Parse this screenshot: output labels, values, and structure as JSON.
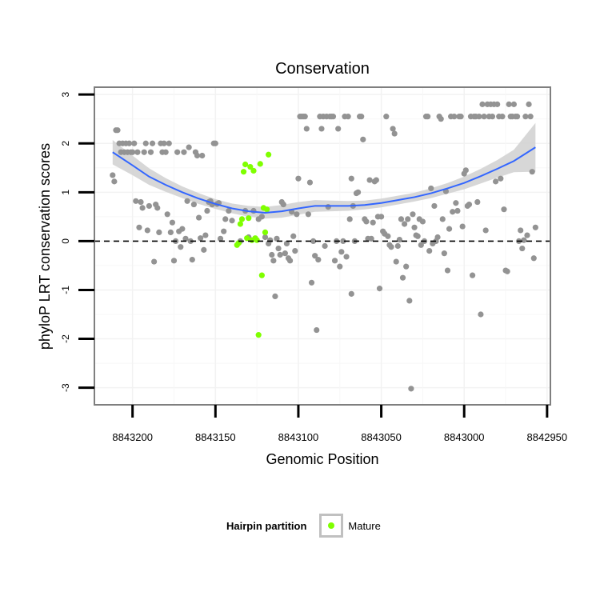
{
  "chart_data": {
    "type": "scatter",
    "title": "Conservation",
    "xlabel": "Genomic Position",
    "ylabel": "phyloP LRT conservation scores",
    "x_reversed": true,
    "xlim": [
      8843223,
      8842948
    ],
    "ylim": [
      -3.35,
      3.15
    ],
    "x_ticks": [
      8843200,
      8843150,
      8843100,
      8843050,
      8843000,
      8842950
    ],
    "y_ticks": [
      -3,
      -2,
      -1,
      0,
      1,
      2,
      3
    ],
    "reference_line": {
      "y": 0,
      "style": "dashed"
    },
    "grid": true,
    "legend": {
      "title": "Hairpin partition",
      "position": "bottom",
      "entries": [
        {
          "label": "Mature",
          "color": "#7fff00"
        }
      ]
    },
    "colors": {
      "other": "#939393",
      "mature": "#7fff00",
      "smooth": "#3366ff",
      "band": "#d3d3d3"
    },
    "series": [
      {
        "group": "other",
        "points": [
          [
            8843212,
            1.35
          ],
          [
            8843211,
            1.22
          ],
          [
            8843210,
            2.27
          ],
          [
            8843209,
            2.27
          ],
          [
            8843208,
            2.0
          ],
          [
            8843207,
            1.82
          ],
          [
            8843206,
            2.0
          ],
          [
            8843205,
            1.82
          ],
          [
            8843204,
            2.0
          ],
          [
            8843203,
            1.82
          ],
          [
            8843202,
            2.0
          ],
          [
            8843201,
            1.82
          ],
          [
            8843200,
            1.82
          ],
          [
            8843199,
            2.0
          ],
          [
            8843198,
            0.82
          ],
          [
            8843197,
            1.82
          ],
          [
            8843196,
            0.28
          ],
          [
            8843195,
            0.8
          ],
          [
            8843194,
            0.68
          ],
          [
            8843193,
            1.82
          ],
          [
            8843192,
            2.0
          ],
          [
            8843191,
            0.22
          ],
          [
            8843190,
            0.72
          ],
          [
            8843189,
            1.82
          ],
          [
            8843188,
            2.0
          ],
          [
            8843187,
            -0.42
          ],
          [
            8843186,
            0.75
          ],
          [
            8843185,
            0.68
          ],
          [
            8843184,
            0.18
          ],
          [
            8843183,
            2.0
          ],
          [
            8843182,
            1.82
          ],
          [
            8843181,
            2.0
          ],
          [
            8843180,
            1.82
          ],
          [
            8843179,
            0.55
          ],
          [
            8843178,
            2.0
          ],
          [
            8843177,
            0.18
          ],
          [
            8843176,
            0.38
          ],
          [
            8843175,
            -0.4
          ],
          [
            8843174,
            0.0
          ],
          [
            8843173,
            1.82
          ],
          [
            8843172,
            0.2
          ],
          [
            8843171,
            -0.12
          ],
          [
            8843170,
            0.25
          ],
          [
            8843169,
            1.82
          ],
          [
            8843168,
            0.05
          ],
          [
            8843167,
            0.82
          ],
          [
            8843166,
            1.92
          ],
          [
            8843165,
            0.0
          ],
          [
            8843164,
            -0.38
          ],
          [
            8843163,
            0.75
          ],
          [
            8843162,
            1.82
          ],
          [
            8843161,
            1.75
          ],
          [
            8843160,
            0.48
          ],
          [
            8843159,
            0.06
          ],
          [
            8843158,
            1.75
          ],
          [
            8843157,
            -0.18
          ],
          [
            8843156,
            0.12
          ],
          [
            8843155,
            0.62
          ],
          [
            8843154,
            0.8
          ],
          [
            8843153,
            0.82
          ],
          [
            8843152,
            0.75
          ],
          [
            8843151,
            2.0
          ],
          [
            8843150,
            2.0
          ],
          [
            8843149,
            0.76
          ],
          [
            8843148,
            0.78
          ],
          [
            8843147,
            0.05
          ],
          [
            8843145,
            0.2
          ],
          [
            8843144,
            0.45
          ],
          [
            8843142,
            0.62
          ],
          [
            8843140,
            0.42
          ],
          [
            8843135,
            0.0
          ],
          [
            8843132,
            0.62
          ],
          [
            8843130,
            0.08
          ],
          [
            8843127,
            0.62
          ],
          [
            8843124,
            0.45
          ],
          [
            8843122,
            0.5
          ],
          [
            8843120,
            0.08
          ],
          [
            8843118,
            -0.05
          ],
          [
            8843117,
            0.02
          ],
          [
            8843116,
            -0.28
          ],
          [
            8843115,
            -0.4
          ],
          [
            8843114,
            -1.13
          ],
          [
            8843113,
            0.05
          ],
          [
            8843112,
            -0.15
          ],
          [
            8843111,
            -0.28
          ],
          [
            8843110,
            0.8
          ],
          [
            8843109,
            0.75
          ],
          [
            8843108,
            -0.25
          ],
          [
            8843107,
            -0.05
          ],
          [
            8843106,
            -0.35
          ],
          [
            8843105,
            -0.4
          ],
          [
            8843104,
            0.6
          ],
          [
            8843103,
            0.1
          ],
          [
            8843102,
            -0.2
          ],
          [
            8843101,
            0.55
          ],
          [
            8843100,
            1.28
          ],
          [
            8843099,
            2.55
          ],
          [
            8843098,
            2.55
          ],
          [
            8843097,
            2.55
          ],
          [
            8843096,
            2.55
          ],
          [
            8843095,
            2.3
          ],
          [
            8843094,
            0.55
          ],
          [
            8843093,
            1.2
          ],
          [
            8843092,
            -0.85
          ],
          [
            8843091,
            0.0
          ],
          [
            8843090,
            -0.3
          ],
          [
            8843089,
            -1.82
          ],
          [
            8843088,
            -0.38
          ],
          [
            8843087,
            2.55
          ],
          [
            8843086,
            2.3
          ],
          [
            8843085,
            2.55
          ],
          [
            8843084,
            -0.1
          ],
          [
            8843083,
            2.55
          ],
          [
            8843082,
            0.7
          ],
          [
            8843081,
            2.55
          ],
          [
            8843080,
            2.55
          ],
          [
            8843079,
            2.55
          ],
          [
            8843078,
            -0.4
          ],
          [
            8843077,
            0.0
          ],
          [
            8843076,
            2.3
          ],
          [
            8843075,
            -0.52
          ],
          [
            8843074,
            -0.22
          ],
          [
            8843073,
            0.0
          ],
          [
            8843072,
            2.55
          ],
          [
            8843071,
            -0.32
          ],
          [
            8843070,
            2.55
          ],
          [
            8843069,
            0.45
          ],
          [
            8843068,
            -1.08
          ],
          [
            8843067,
            0.72
          ],
          [
            8843066,
            0.0
          ],
          [
            8843065,
            0.98
          ],
          [
            8843064,
            1.0
          ],
          [
            8843063,
            2.55
          ],
          [
            8843062,
            2.55
          ],
          [
            8843061,
            2.08
          ],
          [
            8843060,
            0.45
          ],
          [
            8843059,
            0.4
          ],
          [
            8843058,
            0.05
          ],
          [
            8843057,
            1.25
          ],
          [
            8843056,
            0.05
          ],
          [
            8843055,
            0.38
          ],
          [
            8843054,
            1.22
          ],
          [
            8843053,
            1.25
          ],
          [
            8843052,
            0.5
          ],
          [
            8843051,
            -0.97
          ],
          [
            8843050,
            0.5
          ],
          [
            8843049,
            0.2
          ],
          [
            8843048,
            0.15
          ],
          [
            8843047,
            2.55
          ],
          [
            8843046,
            0.1
          ],
          [
            8843045,
            -0.08
          ],
          [
            8843044,
            -0.12
          ],
          [
            8843043,
            2.3
          ],
          [
            8843042,
            2.2
          ],
          [
            8843041,
            -0.42
          ],
          [
            8843040,
            -0.1
          ],
          [
            8843039,
            0.03
          ],
          [
            8843038,
            0.45
          ],
          [
            8843037,
            -0.75
          ],
          [
            8843036,
            0.35
          ],
          [
            8843035,
            -0.52
          ],
          [
            8843034,
            0.45
          ],
          [
            8843033,
            -1.22
          ],
          [
            8843032,
            -3.02
          ],
          [
            8843031,
            0.55
          ],
          [
            8843030,
            0.28
          ],
          [
            8843029,
            0.12
          ],
          [
            8843028,
            0.1
          ],
          [
            8843027,
            0.45
          ],
          [
            8843026,
            -0.08
          ],
          [
            8843025,
            0.4
          ],
          [
            8843024,
            0.0
          ],
          [
            8843023,
            2.55
          ],
          [
            8843022,
            2.55
          ],
          [
            8843021,
            -0.2
          ],
          [
            8843020,
            1.08
          ],
          [
            8843019,
            -0.05
          ],
          [
            8843018,
            0.72
          ],
          [
            8843017,
            0.0
          ],
          [
            8843016,
            0.08
          ],
          [
            8843015,
            2.55
          ],
          [
            8843014,
            2.5
          ],
          [
            8843013,
            0.45
          ],
          [
            8843012,
            -0.25
          ],
          [
            8843011,
            1.02
          ],
          [
            8843010,
            -0.6
          ],
          [
            8843009,
            0.25
          ],
          [
            8843008,
            2.55
          ],
          [
            8843007,
            0.6
          ],
          [
            8843006,
            2.55
          ],
          [
            8843005,
            0.78
          ],
          [
            8843004,
            0.62
          ],
          [
            8843003,
            2.55
          ],
          [
            8843002,
            2.55
          ],
          [
            8843001,
            0.3
          ],
          [
            8843000,
            1.38
          ],
          [
            8842999,
            1.45
          ],
          [
            8842998,
            0.72
          ],
          [
            8842997,
            0.75
          ],
          [
            8842996,
            2.55
          ],
          [
            8842995,
            -0.7
          ],
          [
            8842994,
            2.55
          ],
          [
            8842993,
            2.55
          ],
          [
            8842992,
            0.8
          ],
          [
            8842991,
            2.55
          ],
          [
            8842990,
            -1.5
          ],
          [
            8842989,
            2.8
          ],
          [
            8842988,
            2.55
          ],
          [
            8842987,
            0.22
          ],
          [
            8842986,
            2.8
          ],
          [
            8842985,
            2.55
          ],
          [
            8842984,
            2.8
          ],
          [
            8842983,
            2.55
          ],
          [
            8842982,
            2.8
          ],
          [
            8842981,
            1.22
          ],
          [
            8842980,
            2.8
          ],
          [
            8842979,
            2.55
          ],
          [
            8842978,
            1.28
          ],
          [
            8842977,
            2.55
          ],
          [
            8842976,
            0.65
          ],
          [
            8842975,
            -0.6
          ],
          [
            8842974,
            -0.62
          ],
          [
            8842973,
            2.8
          ],
          [
            8842972,
            2.55
          ],
          [
            8842971,
            2.55
          ],
          [
            8842970,
            2.8
          ],
          [
            8842969,
            2.55
          ],
          [
            8842968,
            2.55
          ],
          [
            8842967,
            0.0
          ],
          [
            8842966,
            0.22
          ],
          [
            8842965,
            -0.15
          ],
          [
            8842964,
            0.02
          ],
          [
            8842963,
            2.55
          ],
          [
            8842962,
            0.12
          ],
          [
            8842961,
            2.8
          ],
          [
            8842960,
            2.55
          ],
          [
            8842959,
            1.42
          ],
          [
            8842958,
            -0.35
          ],
          [
            8842957,
            0.28
          ],
          [
            8843068,
            1.28
          ]
        ]
      },
      {
        "group": "mature",
        "name": "Mature",
        "points": [
          [
            8843137,
            -0.08
          ],
          [
            8843136,
            -0.04
          ],
          [
            8843135,
            0.35
          ],
          [
            8843134,
            0.45
          ],
          [
            8843133,
            1.42
          ],
          [
            8843132,
            1.57
          ],
          [
            8843131,
            0.06
          ],
          [
            8843130,
            0.47
          ],
          [
            8843129,
            1.52
          ],
          [
            8843128,
            0.02
          ],
          [
            8843127,
            1.44
          ],
          [
            8843126,
            0.06
          ],
          [
            8843125,
            0.02
          ],
          [
            8843124,
            -1.92
          ],
          [
            8843123,
            1.58
          ],
          [
            8843122,
            -0.7
          ],
          [
            8843121,
            0.68
          ],
          [
            8843120,
            0.18
          ],
          [
            8843119,
            0.65
          ],
          [
            8843118,
            1.77
          ]
        ]
      }
    ],
    "smooth": {
      "x": [
        8843212,
        8843200,
        8843190,
        8843180,
        8843170,
        8843160,
        8843150,
        8843140,
        8843130,
        8843120,
        8843110,
        8843100,
        8843090,
        8843080,
        8843070,
        8843060,
        8843050,
        8843040,
        8843030,
        8843020,
        8843010,
        8843000,
        8842990,
        8842980,
        8842970,
        8842957
      ],
      "y": [
        1.82,
        1.55,
        1.32,
        1.15,
        1.0,
        0.87,
        0.76,
        0.67,
        0.61,
        0.58,
        0.61,
        0.67,
        0.72,
        0.72,
        0.72,
        0.74,
        0.78,
        0.84,
        0.9,
        0.98,
        1.08,
        1.19,
        1.33,
        1.48,
        1.64,
        1.92
      ],
      "se": [
        0.25,
        0.2,
        0.17,
        0.14,
        0.12,
        0.11,
        0.1,
        0.1,
        0.11,
        0.12,
        0.13,
        0.13,
        0.12,
        0.11,
        0.1,
        0.09,
        0.09,
        0.09,
        0.09,
        0.1,
        0.11,
        0.13,
        0.15,
        0.18,
        0.23,
        0.5
      ]
    }
  }
}
